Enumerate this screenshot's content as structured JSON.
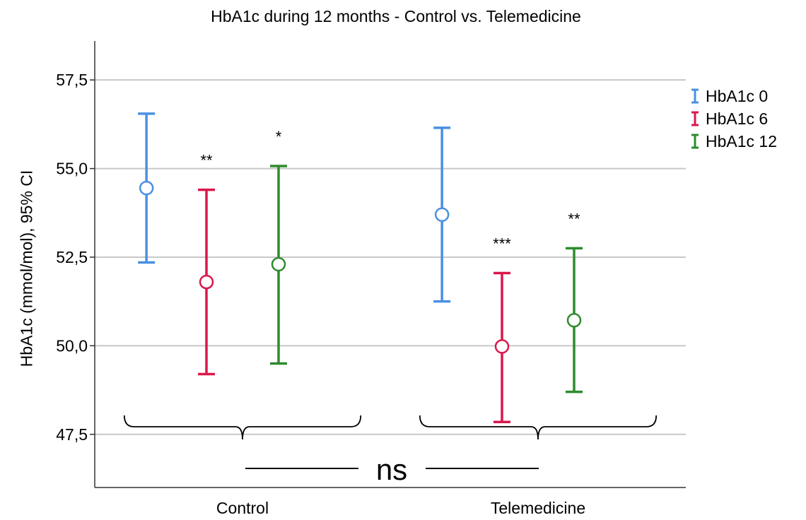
{
  "chart_data": {
    "type": "errorbar",
    "title": "HbA1c during 12 months - Control vs. Telemedicine",
    "ylabel": "HbA1c (mmol/mol), 95% CI",
    "xlabel": "",
    "ylim": [
      46.0,
      58.6
    ],
    "yticks": [
      {
        "value": 47.5,
        "label": "47,5"
      },
      {
        "value": 50.0,
        "label": "50,0"
      },
      {
        "value": 52.5,
        "label": "52,5"
      },
      {
        "value": 55.0,
        "label": "55,0"
      },
      {
        "value": 57.5,
        "label": "57,5"
      }
    ],
    "grid": true,
    "legend_position": "right",
    "categories": [
      "Control",
      "Telemedicine"
    ],
    "series": [
      {
        "name": "HbA1c 0",
        "color": "#4a90e2",
        "mean": [
          54.45,
          53.7
        ],
        "lower": [
          52.35,
          51.25
        ],
        "upper": [
          56.55,
          56.15
        ],
        "significance": [
          "",
          ""
        ]
      },
      {
        "name": "HbA1c 6",
        "color": "#d9184b",
        "mean": [
          51.8,
          49.98
        ],
        "lower": [
          49.2,
          47.85
        ],
        "upper": [
          54.4,
          52.05
        ],
        "significance": [
          "**",
          "***"
        ]
      },
      {
        "name": "HbA1c 12",
        "color": "#2e8b2e",
        "mean": [
          52.3,
          50.72
        ],
        "lower": [
          49.5,
          48.7
        ],
        "upper": [
          55.07,
          52.75
        ],
        "significance": [
          "*",
          "**"
        ]
      }
    ],
    "annotation": "ns"
  }
}
